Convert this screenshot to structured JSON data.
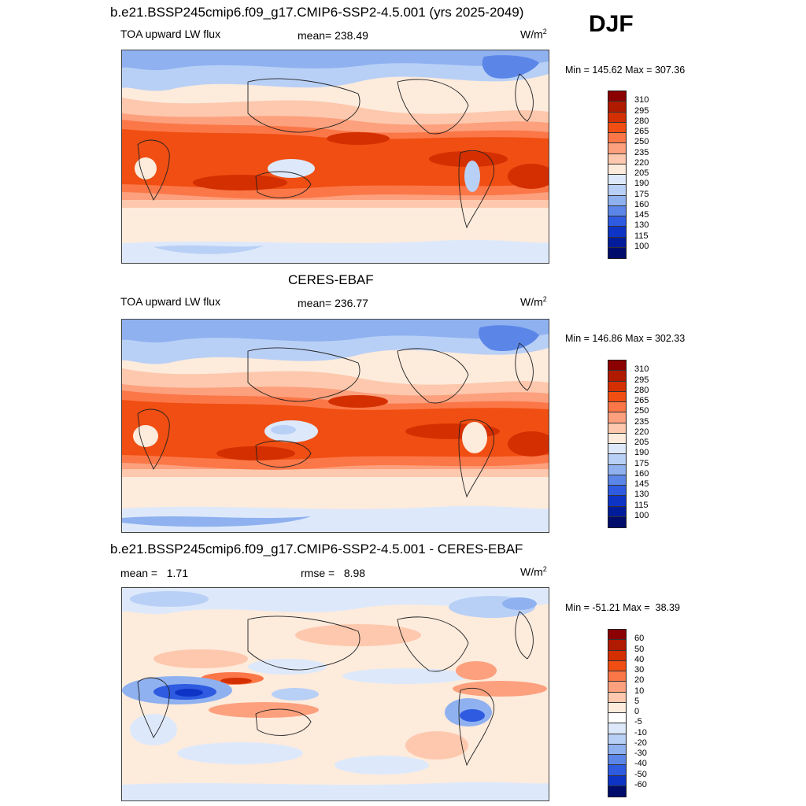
{
  "season": "DJF",
  "panels": [
    {
      "title": "b.e21.BSSP245cmip6.f09_g17.CMIP6-SSP2-4.5.001 (yrs 2025-2049)",
      "left_label": "TOA upward LW flux",
      "center_label": "mean= 238.49",
      "units_base": "W/m",
      "units_exp": "2",
      "minmax": "Min = 145.62 Max = 307.36",
      "levels": [
        "310",
        "295",
        "280",
        "265",
        "250",
        "235",
        "220",
        "205",
        "190",
        "175",
        "160",
        "145",
        "130",
        "115",
        "100"
      ],
      "colors": [
        "#8b0000",
        "#b01a00",
        "#d42f00",
        "#f04e12",
        "#fb7748",
        "#fca07d",
        "#fdc8ad",
        "#fdebdc",
        "#dde9fb",
        "#b9d0f6",
        "#8fb1f0",
        "#5b86e8",
        "#2e5be0",
        "#0e34c6",
        "#001c9a",
        "#000c6b"
      ]
    },
    {
      "title": "CERES-EBAF",
      "left_label": "TOA upward LW flux",
      "center_label": "mean= 236.77",
      "units_base": "W/m",
      "units_exp": "2",
      "minmax": "Min = 146.86 Max = 302.33",
      "levels": [
        "310",
        "295",
        "280",
        "265",
        "250",
        "235",
        "220",
        "205",
        "190",
        "175",
        "160",
        "145",
        "130",
        "115",
        "100"
      ],
      "colors": [
        "#8b0000",
        "#b01a00",
        "#d42f00",
        "#f04e12",
        "#fb7748",
        "#fca07d",
        "#fdc8ad",
        "#fdebdc",
        "#dde9fb",
        "#b9d0f6",
        "#8fb1f0",
        "#5b86e8",
        "#2e5be0",
        "#0e34c6",
        "#001c9a",
        "#000c6b"
      ]
    },
    {
      "title": "b.e21.BSSP245cmip6.f09_g17.CMIP6-SSP2-4.5.001 - CERES-EBAF",
      "left_label": "mean =   1.71",
      "center_label": "rmse =   8.98",
      "units_base": "W/m",
      "units_exp": "2",
      "minmax": "Min = -51.21 Max =  38.39",
      "levels": [
        "60",
        "50",
        "40",
        "30",
        "20",
        "10",
        "5",
        "0",
        "-5",
        "-10",
        "-20",
        "-30",
        "-40",
        "-50",
        "-60"
      ],
      "colors": [
        "#8b0000",
        "#b01a00",
        "#d42f00",
        "#f04e12",
        "#fb7748",
        "#fca07d",
        "#fdc8ad",
        "#fdebdc",
        "#ffffff",
        "#dde9fb",
        "#b9d0f6",
        "#8fb1f0",
        "#5b86e8",
        "#2e5be0",
        "#0e34c6",
        "#000c6b"
      ]
    }
  ]
}
